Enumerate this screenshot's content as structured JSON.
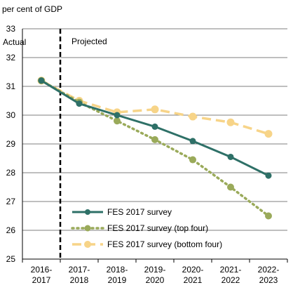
{
  "chart_data": {
    "type": "line",
    "y_unit_label": "per cent of GDP",
    "categories": [
      [
        "2016-",
        "2017"
      ],
      [
        "2017-",
        "2018"
      ],
      [
        "2018-",
        "2019"
      ],
      [
        "2019-",
        "2020"
      ],
      [
        "2020-",
        "2021"
      ],
      [
        "2021-",
        "2022"
      ],
      [
        "2022-",
        "2023"
      ]
    ],
    "ylim": [
      25,
      33
    ],
    "yticks": [
      25,
      26,
      27,
      28,
      29,
      30,
      31,
      32,
      33
    ],
    "grid": "horizontal",
    "legend_position": "bottom-right",
    "region_labels": {
      "actual": "Actual",
      "projected": "Projected"
    },
    "series": [
      {
        "name": "FES 2017 survey",
        "color": "#2e7067",
        "style": "solid",
        "values": [
          31.2,
          30.4,
          30.0,
          29.6,
          29.1,
          28.55,
          27.9
        ]
      },
      {
        "name": "FES 2017 survey (top four)",
        "color": "#9aaa5a",
        "style": "dotted",
        "values": [
          31.2,
          30.45,
          29.8,
          29.15,
          28.45,
          27.5,
          26.5
        ]
      },
      {
        "name": "FES 2017 survey (bottom four)",
        "color": "#f7d488",
        "style": "dashed",
        "values": [
          31.2,
          30.5,
          30.1,
          30.2,
          29.95,
          29.75,
          29.35
        ]
      }
    ]
  }
}
